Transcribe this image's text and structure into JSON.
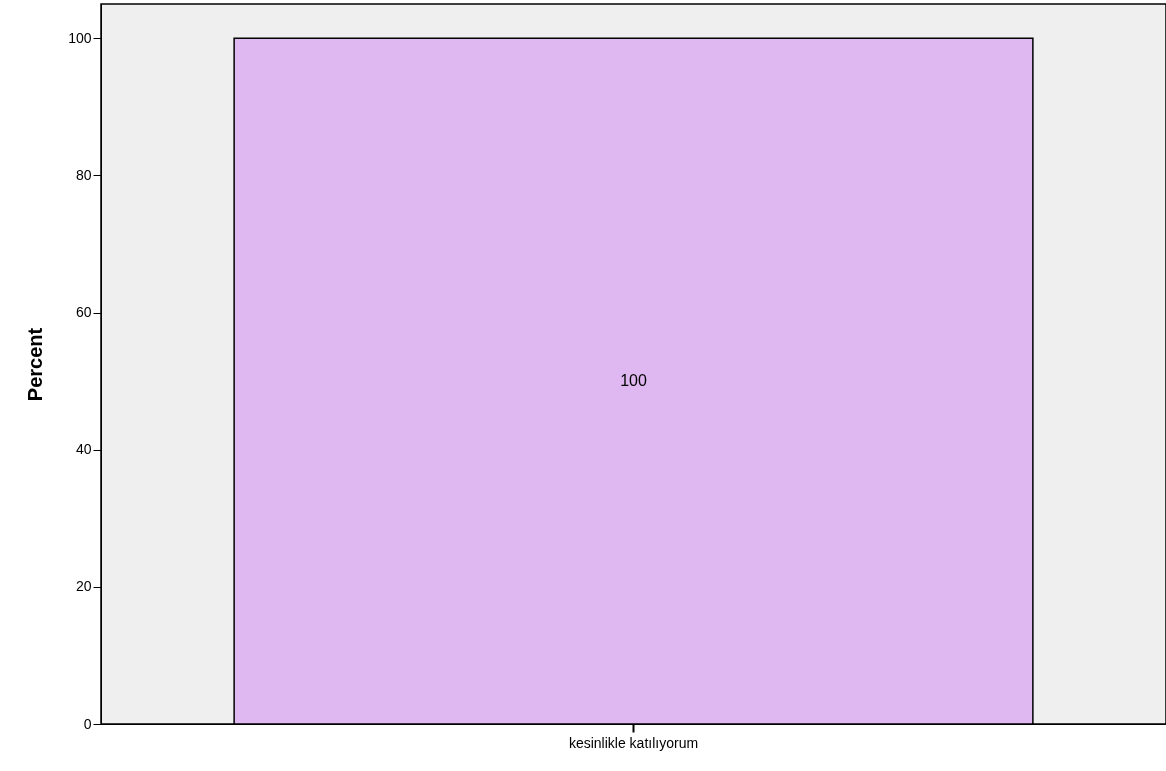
{
  "chart_data": {
    "type": "bar",
    "ylabel": "Percent",
    "categories": [
      "kesinlikle katılıyorum"
    ],
    "values": [
      100
    ],
    "color": "#dfb8f2",
    "ylim": [
      0,
      105
    ],
    "yticks": [
      0,
      20,
      40,
      60,
      80,
      100
    ],
    "grid": false,
    "data_labels": true
  }
}
